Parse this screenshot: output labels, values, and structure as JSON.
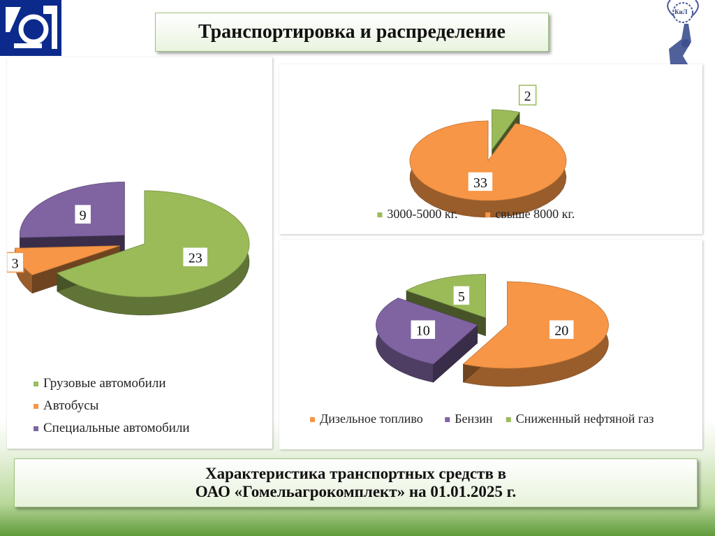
{
  "slide": {
    "title": "Транспортировка и распределение",
    "footer_line1": "Характеристика транспортных средств в",
    "footer_line2": "ОАО «Гомельагрокомплект» на 01.01.2025 г.",
    "logo_right_text": "КиЛ"
  },
  "chart_data": [
    {
      "type": "pie",
      "categories": [
        "Грузовые автомобили",
        "Автобусы",
        "Специальные автомобили"
      ],
      "values": [
        23,
        3,
        9
      ],
      "colors": [
        "#9bbb59",
        "#f79646",
        "#8064a2"
      ],
      "exploded": true,
      "style": "3d",
      "legend_position": "bottom"
    },
    {
      "type": "pie",
      "categories": [
        "3000-5000 кг.",
        "свыше 8000 кг."
      ],
      "values": [
        2,
        33
      ],
      "colors": [
        "#9bbb59",
        "#f79646"
      ],
      "exploded": true,
      "style": "3d",
      "legend_position": "bottom"
    },
    {
      "type": "pie",
      "categories": [
        "Дизельное топливо",
        "Бензин",
        "Сниженный нефтяной газ"
      ],
      "values": [
        20,
        10,
        5
      ],
      "colors": [
        "#f79646",
        "#8064a2",
        "#9bbb59"
      ],
      "exploded": true,
      "style": "3d",
      "legend_position": "bottom"
    }
  ]
}
